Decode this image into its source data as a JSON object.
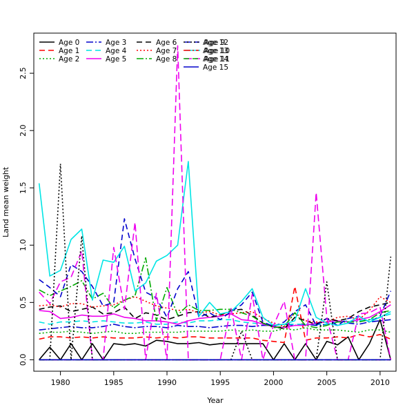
{
  "chart_data": {
    "type": "line",
    "title": "",
    "xlabel": "Year",
    "ylabel": "Land mean weight",
    "xlim": [
      1977.5,
      2011.5
    ],
    "ylim": [
      -0.1,
      2.85
    ],
    "xticks": [
      1980,
      1985,
      1990,
      1995,
      2000,
      2005,
      2010
    ],
    "yticks": [
      0.0,
      0.5,
      1.0,
      1.5,
      2.0,
      2.5
    ],
    "ytick_labels": [
      "0.0",
      "0.5",
      "1.0",
      "1.5",
      "2.0",
      "2.5"
    ],
    "grid": false,
    "legend_position": "top-left",
    "x": [
      1978,
      1979,
      1980,
      1981,
      1982,
      1983,
      1984,
      1985,
      1986,
      1987,
      1988,
      1989,
      1990,
      1991,
      1992,
      1993,
      1994,
      1995,
      1996,
      1997,
      1998,
      1999,
      2000,
      2001,
      2002,
      2003,
      2004,
      2005,
      2006,
      2007,
      2008,
      2009,
      2010,
      2011
    ],
    "series": [
      {
        "name": "Age 0",
        "color": "#000000",
        "dash": "solid",
        "values": [
          0,
          0.11,
          0,
          0.14,
          0,
          0.14,
          0,
          0.14,
          0.13,
          0.14,
          0.12,
          0.17,
          0.16,
          0.14,
          0.14,
          0.15,
          0.13,
          0.14,
          0.14,
          0.14,
          0.14,
          0.14,
          0,
          0.14,
          0,
          0.14,
          0,
          0.16,
          0.13,
          0.2,
          0,
          0.14,
          0.35,
          0
        ]
      },
      {
        "name": "Age 1",
        "color": "#ff0000",
        "dash": "8,5",
        "values": [
          0.18,
          0.2,
          0.2,
          0.19,
          0.2,
          0.19,
          0.2,
          0.19,
          0.19,
          0.19,
          0.2,
          0.19,
          0.2,
          0.19,
          0.2,
          0.2,
          0.19,
          0.19,
          0.19,
          0.19,
          0.19,
          0.17,
          0.16,
          0.15,
          0.64,
          0.17,
          0.19,
          0.19,
          0.2,
          0.19,
          0.22,
          0.2,
          0.22,
          0.18
        ]
      },
      {
        "name": "Age 2",
        "color": "#00aa00",
        "dash": "2,3",
        "values": [
          0.23,
          0.24,
          0.24,
          0.25,
          0.24,
          0.23,
          0.24,
          0.25,
          0.23,
          0.23,
          0.24,
          0.24,
          0.24,
          0.24,
          0.25,
          0.25,
          0.25,
          0.25,
          0.26,
          0.25,
          0.26,
          0.25,
          0.25,
          0.27,
          0.26,
          0.28,
          0.26,
          0.26,
          0.26,
          0.25,
          0.24,
          0.26,
          0.26,
          0.24
        ]
      },
      {
        "name": "Age 3",
        "color": "#0000cc",
        "dash": "10,3,2,3",
        "values": [
          0.26,
          0.27,
          0.28,
          0.29,
          0.28,
          0.28,
          0.29,
          0.31,
          0.29,
          0.28,
          0.29,
          0.29,
          0.28,
          0.3,
          0.29,
          0.29,
          0.28,
          0.29,
          0.3,
          0.3,
          0.29,
          0.3,
          0.3,
          0.31,
          0.3,
          0.31,
          0.3,
          0.31,
          0.3,
          0.32,
          0.31,
          0.33,
          0.34,
          0.35
        ]
      },
      {
        "name": "Age 4",
        "color": "#00e5e5",
        "dash": "8,5",
        "values": [
          0.33,
          0.31,
          0.33,
          0.33,
          0.34,
          0.33,
          0.34,
          0.33,
          0.32,
          0.32,
          0.33,
          0.31,
          0.31,
          0.33,
          0.32,
          0.34,
          0.34,
          0.35,
          0.35,
          0.33,
          0.32,
          0.31,
          0.3,
          0.31,
          0.31,
          0.31,
          0.31,
          0.31,
          0.33,
          0.34,
          0.34,
          0.35,
          0.37,
          0.4
        ]
      },
      {
        "name": "Age 5",
        "color": "#ee00ee",
        "dash": "solid",
        "values": [
          0.43,
          0.42,
          0.36,
          0.37,
          0.39,
          0.38,
          0.38,
          0.4,
          0.37,
          0.36,
          0.34,
          0.34,
          0.33,
          0.31,
          0.34,
          0.36,
          0.37,
          0.38,
          0.4,
          0.35,
          0.34,
          0.31,
          0.29,
          0.28,
          0.3,
          0.3,
          0.32,
          0.33,
          0.34,
          0.33,
          0.35,
          0.37,
          0.42,
          0.48
        ]
      },
      {
        "name": "Age 6",
        "color": "#000000",
        "dash": "8,5",
        "values": [
          0.44,
          0.46,
          0.47,
          0.42,
          0.44,
          0.46,
          0.4,
          0.41,
          0.46,
          0.36,
          0.41,
          0.39,
          0.35,
          0.38,
          0.41,
          0.42,
          0.37,
          0.39,
          0.43,
          0.44,
          0.39,
          0.32,
          0.29,
          0.27,
          0.37,
          0.34,
          0.31,
          0.36,
          0.34,
          0.36,
          0.42,
          0.46,
          0.48,
          0.5
        ]
      },
      {
        "name": "Age 7",
        "color": "#ff0000",
        "dash": "2,3",
        "values": [
          0.47,
          0.48,
          0.46,
          0.49,
          0.49,
          0.46,
          0.47,
          0.48,
          0.52,
          0.55,
          0.51,
          0.47,
          0.45,
          0.43,
          0.44,
          0.41,
          0.42,
          0.39,
          0.4,
          0.41,
          0.42,
          0.36,
          0.32,
          0.29,
          0.41,
          0.34,
          0.33,
          0.33,
          0.37,
          0.38,
          0.35,
          0.43,
          0.55,
          0.5
        ]
      },
      {
        "name": "Age 8",
        "color": "#00aa00",
        "dash": "10,3,2,3",
        "values": [
          0.61,
          0.56,
          0.6,
          0.64,
          0.69,
          0.53,
          0.58,
          0.45,
          0.52,
          0.56,
          0.89,
          0.34,
          0.63,
          0.39,
          0.48,
          0.43,
          0.43,
          0.44,
          0.44,
          0.41,
          0.38,
          0.32,
          0.28,
          0.29,
          0.41,
          0.3,
          0.28,
          0.3,
          0.33,
          0.33,
          0.33,
          0.35,
          0.41,
          0.43
        ]
      },
      {
        "name": "Age 9",
        "color": "#0000cc",
        "dash": "8,5",
        "values": [
          0.7,
          0.63,
          0.55,
          0.83,
          0.77,
          0.64,
          0.47,
          0.5,
          1.23,
          0.88,
          0.59,
          0.54,
          0.37,
          0.62,
          0.77,
          0.37,
          0.41,
          0.35,
          0.42,
          0.48,
          0.59,
          0.33,
          0.29,
          0.33,
          0.42,
          0.48,
          0.3,
          0.36,
          0.3,
          0.36,
          0.38,
          0.33,
          0.38,
          0.6
        ]
      },
      {
        "name": "Age 10",
        "color": "#00e5e5",
        "dash": "solid",
        "values": [
          1.54,
          0.73,
          0.78,
          1.05,
          1.14,
          0.52,
          0.87,
          0.85,
          0.99,
          0.6,
          0.67,
          0.86,
          0.91,
          1.0,
          1.73,
          0.38,
          0.5,
          0.4,
          0.42,
          0.51,
          0.62,
          0.37,
          0.3,
          0.31,
          0.34,
          0.62,
          0.37,
          0.32,
          0.3,
          0.32,
          0.38,
          0.33,
          0.37,
          0.42
        ]
      },
      {
        "name": "Age 11",
        "color": "#ee00ee",
        "dash": "10,5",
        "values": [
          0.59,
          0.49,
          0.68,
          0.72,
          0.95,
          0,
          0,
          0.98,
          0.44,
          1.2,
          0,
          0.58,
          0,
          2.74,
          0,
          0,
          0,
          0,
          0.45,
          0,
          0.57,
          0,
          0.3,
          0.51,
          0,
          0,
          1.46,
          0.37,
          0,
          0,
          0.4,
          0.41,
          0.46,
          0
        ]
      },
      {
        "name": "Age 12",
        "color": "#000000",
        "dash": "2,3",
        "values": [
          0,
          0,
          1.71,
          0,
          1.08,
          0,
          0,
          0,
          0,
          0,
          0,
          0,
          0,
          0,
          0,
          0,
          0,
          0,
          0,
          0.25,
          0,
          0,
          0,
          0,
          0,
          0,
          0,
          0.68,
          0,
          0,
          0,
          0,
          0,
          0.9
        ]
      },
      {
        "name": "Age 13",
        "color": "#ff0000",
        "dash": "10,3,2,3",
        "values": [
          0,
          0,
          0,
          0,
          0,
          0,
          0,
          0,
          0,
          0,
          0,
          0,
          0,
          0,
          0,
          0,
          0,
          0,
          0,
          0,
          0,
          0,
          0,
          0,
          0,
          0,
          0,
          0,
          0,
          0,
          0,
          0,
          0,
          0
        ]
      },
      {
        "name": "Age 14",
        "color": "#00aa00",
        "dash": "8,5",
        "values": [
          0,
          0,
          0,
          0,
          0,
          0,
          0,
          0,
          0,
          0,
          0,
          0,
          0,
          0,
          0,
          0,
          0,
          0,
          0,
          0,
          0,
          0,
          0,
          0,
          0,
          0,
          0,
          0,
          0,
          0,
          0,
          0,
          0,
          0
        ]
      },
      {
        "name": "Age 15",
        "color": "#0000cc",
        "dash": "solid",
        "values": [
          0,
          0,
          0,
          0,
          0,
          0,
          0,
          0,
          0,
          0,
          0,
          0,
          0,
          0,
          0,
          0,
          0,
          0,
          0,
          0,
          0,
          0,
          0,
          0,
          0,
          0,
          0,
          0,
          0,
          0,
          0,
          0,
          0,
          0
        ]
      }
    ]
  }
}
